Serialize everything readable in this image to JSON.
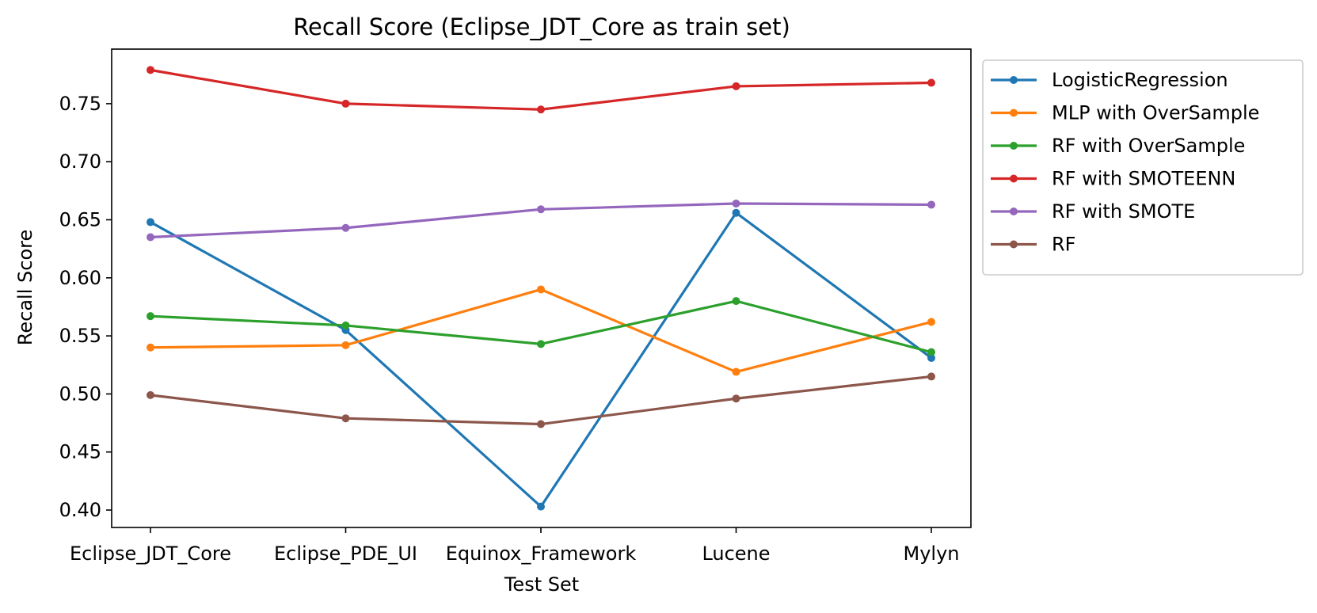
{
  "chart_data": {
    "type": "line",
    "title": "Recall Score (Eclipse_JDT_Core as train set)",
    "xlabel": "Test Set",
    "ylabel": "Recall Score",
    "categories": [
      "Eclipse_JDT_Core",
      "Eclipse_PDE_UI",
      "Equinox_Framework",
      "Lucene",
      "Mylyn"
    ],
    "ylim": [
      0.385,
      0.797
    ],
    "yticks": [
      0.4,
      0.45,
      0.5,
      0.55,
      0.6,
      0.65,
      0.7,
      0.75
    ],
    "ytick_labels": [
      "0.40",
      "0.45",
      "0.50",
      "0.55",
      "0.60",
      "0.65",
      "0.70",
      "0.75"
    ],
    "grid": false,
    "legend_position": "outside-top-right",
    "series": [
      {
        "name": "LogisticRegression",
        "color": "#1f77b4",
        "values": [
          0.648,
          0.555,
          0.403,
          0.656,
          0.531
        ]
      },
      {
        "name": "MLP with OverSample",
        "color": "#ff7f0e",
        "values": [
          0.54,
          0.542,
          0.59,
          0.519,
          0.562
        ]
      },
      {
        "name": "RF with OverSample",
        "color": "#2ca02c",
        "values": [
          0.567,
          0.559,
          0.543,
          0.58,
          0.536
        ]
      },
      {
        "name": "RF with SMOTEENN",
        "color": "#d62728",
        "values": [
          0.779,
          0.75,
          0.745,
          0.765,
          0.768
        ]
      },
      {
        "name": "RF with SMOTE",
        "color": "#9467bd",
        "values": [
          0.635,
          0.643,
          0.659,
          0.664,
          0.663
        ]
      },
      {
        "name": "RF",
        "color": "#8c564b",
        "values": [
          0.499,
          0.479,
          0.474,
          0.496,
          0.515
        ]
      }
    ]
  }
}
